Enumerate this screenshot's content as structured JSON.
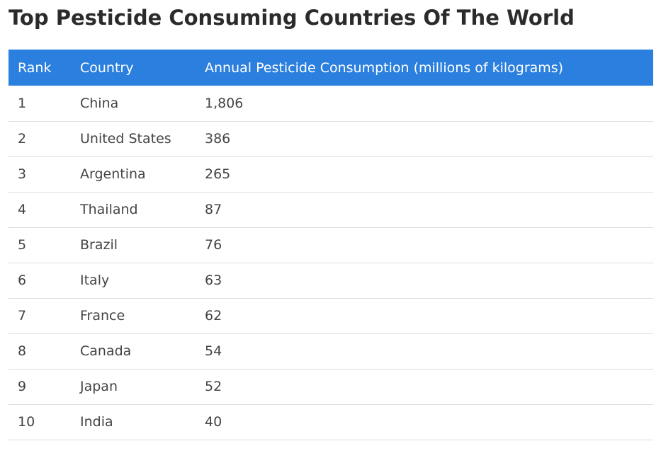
{
  "page": {
    "title": "Top Pesticide Consuming Countries Of The World"
  },
  "table": {
    "headers": {
      "rank": "Rank",
      "country": "Country",
      "value": "Annual Pesticide Consumption (millions of kilograms)"
    },
    "rows": [
      {
        "rank": "1",
        "country": "China",
        "value": "1,806"
      },
      {
        "rank": "2",
        "country": "United States",
        "value": "386"
      },
      {
        "rank": "3",
        "country": "Argentina",
        "value": "265"
      },
      {
        "rank": "4",
        "country": "Thailand",
        "value": "87"
      },
      {
        "rank": "5",
        "country": "Brazil",
        "value": "76"
      },
      {
        "rank": "6",
        "country": "Italy",
        "value": "63"
      },
      {
        "rank": "7",
        "country": "France",
        "value": "62"
      },
      {
        "rank": "8",
        "country": "Canada",
        "value": "54"
      },
      {
        "rank": "9",
        "country": "Japan",
        "value": "52"
      },
      {
        "rank": "10",
        "country": "India",
        "value": "40"
      }
    ]
  },
  "colors": {
    "header_background": "#2b7fde",
    "header_text": "#ffffff",
    "row_divider": "#dddddd"
  }
}
